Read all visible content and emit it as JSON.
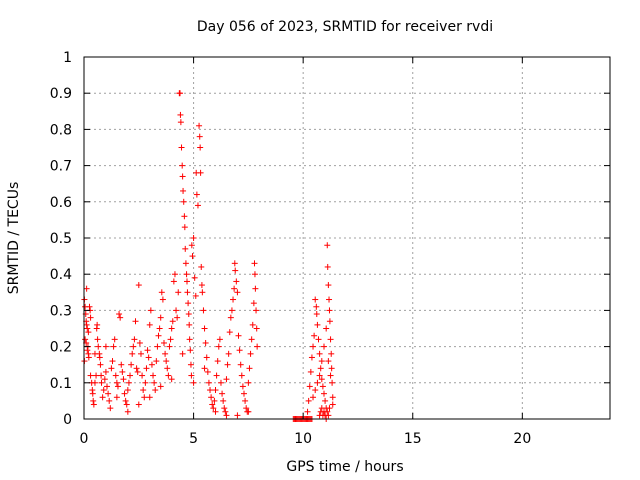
{
  "chart_data": {
    "type": "scatter",
    "title": "Day 056 of 2023, SRMTID for receiver rvdi",
    "xlabel": "GPS time / hours",
    "ylabel": "SRMTID / TECUs",
    "xlim": [
      0,
      24
    ],
    "ylim": [
      0,
      1
    ],
    "x_ticks": [
      0,
      5,
      10,
      15,
      20
    ],
    "x_tick_labels": [
      "0",
      "5",
      "10",
      "15",
      "20"
    ],
    "y_ticks": [
      0,
      0.1,
      0.2,
      0.3,
      0.4,
      0.5,
      0.6,
      0.7,
      0.8,
      0.9,
      1
    ],
    "y_tick_labels": [
      "0",
      "0.1",
      "0.2",
      "0.3",
      "0.4",
      "0.5",
      "0.6",
      "0.7",
      "0.8",
      "0.9",
      "1"
    ],
    "grid": true,
    "marker": "plus",
    "color": "#ff0000",
    "series": [
      {
        "points": [
          [
            0.02,
            0.33
          ],
          [
            0.05,
            0.31
          ],
          [
            0.08,
            0.29
          ],
          [
            0.1,
            0.27
          ],
          [
            0.12,
            0.26
          ],
          [
            0.15,
            0.25
          ],
          [
            0.05,
            0.22
          ],
          [
            0.1,
            0.21
          ],
          [
            0.2,
            0.24
          ],
          [
            0.18,
            0.2
          ],
          [
            0.2,
            0.18
          ],
          [
            0.22,
            0.17
          ],
          [
            0.25,
            0.31
          ],
          [
            0.28,
            0.3
          ],
          [
            0.3,
            0.28
          ],
          [
            0.02,
            0.16
          ],
          [
            0.12,
            0.36
          ],
          [
            0.15,
            0.19
          ],
          [
            0.3,
            0.12
          ],
          [
            0.35,
            0.1
          ],
          [
            0.38,
            0.08
          ],
          [
            0.4,
            0.07
          ],
          [
            0.42,
            0.05
          ],
          [
            0.45,
            0.04
          ],
          [
            0.5,
            0.1
          ],
          [
            0.55,
            0.12
          ],
          [
            0.58,
            0.25
          ],
          [
            0.6,
            0.26
          ],
          [
            0.62,
            0.22
          ],
          [
            0.65,
            0.2
          ],
          [
            0.7,
            0.18
          ],
          [
            0.72,
            0.17
          ],
          [
            0.75,
            0.15
          ],
          [
            0.78,
            0.12
          ],
          [
            0.8,
            0.1
          ],
          [
            0.85,
            0.06
          ],
          [
            0.9,
            0.08
          ],
          [
            0.95,
            0.11
          ],
          [
            1.0,
            0.13
          ],
          [
            1.05,
            0.09
          ],
          [
            1.1,
            0.07
          ],
          [
            1.15,
            0.05
          ],
          [
            1.2,
            0.03
          ],
          [
            1.25,
            0.14
          ],
          [
            1.3,
            0.16
          ],
          [
            1.35,
            0.2
          ],
          [
            1.4,
            0.22
          ],
          [
            1.45,
            0.12
          ],
          [
            1.5,
            0.1
          ],
          [
            1.55,
            0.09
          ],
          [
            1.6,
            0.29
          ],
          [
            1.65,
            0.28
          ],
          [
            1.7,
            0.15
          ],
          [
            1.75,
            0.13
          ],
          [
            1.8,
            0.11
          ],
          [
            1.85,
            0.07
          ],
          [
            1.9,
            0.05
          ],
          [
            1.95,
            0.04
          ],
          [
            2.0,
            0.08
          ],
          [
            2.05,
            0.1
          ],
          [
            2.1,
            0.12
          ],
          [
            2.15,
            0.15
          ],
          [
            2.2,
            0.18
          ],
          [
            2.25,
            0.2
          ],
          [
            2.3,
            0.22
          ],
          [
            2.35,
            0.27
          ],
          [
            2.4,
            0.14
          ],
          [
            2.45,
            0.13
          ],
          [
            2.5,
            0.37
          ],
          [
            2.55,
            0.21
          ],
          [
            2.6,
            0.18
          ],
          [
            2.65,
            0.12
          ],
          [
            2.7,
            0.08
          ],
          [
            2.75,
            0.06
          ],
          [
            2.8,
            0.1
          ],
          [
            2.85,
            0.14
          ],
          [
            2.9,
            0.19
          ],
          [
            2.95,
            0.17
          ],
          [
            3.0,
            0.26
          ],
          [
            3.05,
            0.3
          ],
          [
            3.1,
            0.15
          ],
          [
            3.15,
            0.12
          ],
          [
            3.2,
            0.1
          ],
          [
            3.25,
            0.08
          ],
          [
            3.3,
            0.16
          ],
          [
            3.35,
            0.2
          ],
          [
            3.4,
            0.23
          ],
          [
            3.45,
            0.25
          ],
          [
            3.5,
            0.28
          ],
          [
            3.55,
            0.35
          ],
          [
            3.6,
            0.33
          ],
          [
            3.65,
            0.21
          ],
          [
            3.7,
            0.18
          ],
          [
            3.75,
            0.16
          ],
          [
            3.8,
            0.14
          ],
          [
            3.85,
            0.12
          ],
          [
            3.9,
            0.2
          ],
          [
            3.95,
            0.22
          ],
          [
            4.0,
            0.25
          ],
          [
            4.05,
            0.27
          ],
          [
            4.1,
            0.38
          ],
          [
            4.15,
            0.4
          ],
          [
            4.2,
            0.3
          ],
          [
            4.25,
            0.28
          ],
          [
            4.3,
            0.35
          ],
          [
            4.35,
            0.9
          ],
          [
            4.38,
            0.9
          ],
          [
            4.4,
            0.84
          ],
          [
            4.42,
            0.82
          ],
          [
            4.45,
            0.75
          ],
          [
            4.48,
            0.7
          ],
          [
            4.5,
            0.67
          ],
          [
            4.52,
            0.63
          ],
          [
            4.55,
            0.6
          ],
          [
            4.58,
            0.56
          ],
          [
            4.6,
            0.53
          ],
          [
            4.62,
            0.47
          ],
          [
            4.65,
            0.43
          ],
          [
            4.68,
            0.4
          ],
          [
            4.7,
            0.38
          ],
          [
            4.72,
            0.35
          ],
          [
            4.75,
            0.32
          ],
          [
            4.78,
            0.29
          ],
          [
            4.8,
            0.26
          ],
          [
            4.82,
            0.22
          ],
          [
            4.85,
            0.19
          ],
          [
            4.88,
            0.15
          ],
          [
            4.9,
            0.12
          ],
          [
            4.92,
            0.48
          ],
          [
            4.95,
            0.45
          ],
          [
            5.0,
            0.5
          ],
          [
            5.05,
            0.39
          ],
          [
            5.1,
            0.34
          ],
          [
            5.12,
            0.68
          ],
          [
            5.15,
            0.62
          ],
          [
            5.2,
            0.59
          ],
          [
            5.25,
            0.81
          ],
          [
            5.28,
            0.78
          ],
          [
            5.3,
            0.75
          ],
          [
            5.32,
            0.68
          ],
          [
            5.35,
            0.42
          ],
          [
            5.38,
            0.37
          ],
          [
            5.4,
            0.35
          ],
          [
            5.45,
            0.3
          ],
          [
            5.5,
            0.25
          ],
          [
            5.55,
            0.21
          ],
          [
            5.6,
            0.17
          ],
          [
            5.65,
            0.13
          ],
          [
            5.7,
            0.1
          ],
          [
            5.75,
            0.08
          ],
          [
            5.8,
            0.06
          ],
          [
            5.85,
            0.04
          ],
          [
            5.9,
            0.03
          ],
          [
            5.95,
            0.05
          ],
          [
            6.0,
            0.08
          ],
          [
            6.05,
            0.12
          ],
          [
            6.1,
            0.16
          ],
          [
            6.15,
            0.2
          ],
          [
            6.2,
            0.22
          ],
          [
            6.25,
            0.1
          ],
          [
            6.3,
            0.07
          ],
          [
            6.35,
            0.05
          ],
          [
            6.4,
            0.03
          ],
          [
            6.45,
            0.02
          ],
          [
            6.5,
            0.11
          ],
          [
            6.55,
            0.15
          ],
          [
            6.6,
            0.18
          ],
          [
            6.65,
            0.24
          ],
          [
            6.7,
            0.28
          ],
          [
            6.75,
            0.3
          ],
          [
            6.8,
            0.33
          ],
          [
            6.85,
            0.36
          ],
          [
            6.88,
            0.43
          ],
          [
            6.9,
            0.41
          ],
          [
            6.95,
            0.38
          ],
          [
            7.0,
            0.35
          ],
          [
            7.05,
            0.23
          ],
          [
            7.1,
            0.19
          ],
          [
            7.15,
            0.15
          ],
          [
            7.2,
            0.12
          ],
          [
            7.25,
            0.09
          ],
          [
            7.3,
            0.07
          ],
          [
            7.35,
            0.05
          ],
          [
            7.4,
            0.03
          ],
          [
            7.45,
            0.02
          ],
          [
            7.5,
            0.1
          ],
          [
            7.55,
            0.14
          ],
          [
            7.6,
            0.18
          ],
          [
            7.65,
            0.22
          ],
          [
            7.7,
            0.26
          ],
          [
            7.75,
            0.32
          ],
          [
            7.78,
            0.43
          ],
          [
            7.8,
            0.4
          ],
          [
            7.82,
            0.36
          ],
          [
            7.85,
            0.3
          ],
          [
            7.88,
            0.25
          ],
          [
            7.9,
            0.2
          ],
          [
            0.5,
            0.18
          ],
          [
            1.0,
            0.2
          ],
          [
            1.5,
            0.06
          ],
          [
            2.0,
            0.02
          ],
          [
            2.5,
            0.04
          ],
          [
            3.0,
            0.06
          ],
          [
            3.5,
            0.09
          ],
          [
            4.0,
            0.11
          ],
          [
            4.5,
            0.18
          ],
          [
            5.0,
            0.1
          ],
          [
            5.5,
            0.14
          ],
          [
            6.0,
            0.02
          ],
          [
            6.5,
            0.01
          ],
          [
            7.0,
            0.01
          ],
          [
            7.5,
            0.02
          ],
          [
            9.55,
            0.0
          ],
          [
            9.6,
            0.0
          ],
          [
            9.65,
            0.0
          ],
          [
            9.7,
            0.0
          ],
          [
            9.75,
            0.0
          ],
          [
            9.8,
            0.0
          ],
          [
            9.85,
            0.0
          ],
          [
            9.9,
            0.0
          ],
          [
            9.95,
            0.0
          ],
          [
            10.0,
            0.0
          ],
          [
            10.05,
            0.0
          ],
          [
            10.1,
            0.0
          ],
          [
            10.15,
            0.0
          ],
          [
            10.2,
            0.0
          ],
          [
            10.25,
            0.0
          ],
          [
            10.3,
            0.0
          ],
          [
            10.35,
            0.0
          ],
          [
            10.4,
            0.0
          ],
          [
            10.2,
            0.02
          ],
          [
            10.25,
            0.05
          ],
          [
            10.3,
            0.09
          ],
          [
            10.35,
            0.13
          ],
          [
            10.4,
            0.17
          ],
          [
            10.45,
            0.2
          ],
          [
            10.5,
            0.23
          ],
          [
            10.55,
            0.33
          ],
          [
            10.6,
            0.31
          ],
          [
            10.62,
            0.29
          ],
          [
            10.65,
            0.26
          ],
          [
            10.7,
            0.22
          ],
          [
            10.75,
            0.18
          ],
          [
            10.8,
            0.14
          ],
          [
            10.85,
            0.11
          ],
          [
            10.9,
            0.09
          ],
          [
            10.95,
            0.07
          ],
          [
            11.0,
            0.05
          ],
          [
            11.05,
            0.03
          ],
          [
            11.1,
            0.48
          ],
          [
            11.12,
            0.42
          ],
          [
            11.15,
            0.37
          ],
          [
            11.18,
            0.33
          ],
          [
            11.2,
            0.3
          ],
          [
            11.22,
            0.27
          ],
          [
            11.25,
            0.22
          ],
          [
            11.28,
            0.18
          ],
          [
            11.3,
            0.14
          ],
          [
            11.32,
            0.1
          ],
          [
            11.35,
            0.06
          ],
          [
            10.75,
            0.01
          ],
          [
            10.8,
            0.02
          ],
          [
            10.85,
            0.03
          ],
          [
            10.9,
            0.01
          ],
          [
            10.95,
            0.02
          ],
          [
            11.0,
            0.01
          ],
          [
            11.05,
            0.0
          ],
          [
            11.1,
            0.02
          ],
          [
            11.15,
            0.01
          ],
          [
            11.2,
            0.03
          ],
          [
            10.45,
            0.06
          ],
          [
            10.55,
            0.08
          ],
          [
            10.65,
            0.1
          ],
          [
            10.75,
            0.12
          ],
          [
            10.85,
            0.16
          ],
          [
            10.95,
            0.2
          ],
          [
            11.05,
            0.25
          ],
          [
            11.15,
            0.16
          ],
          [
            11.25,
            0.12
          ],
          [
            11.35,
            0.04
          ]
        ]
      }
    ]
  }
}
